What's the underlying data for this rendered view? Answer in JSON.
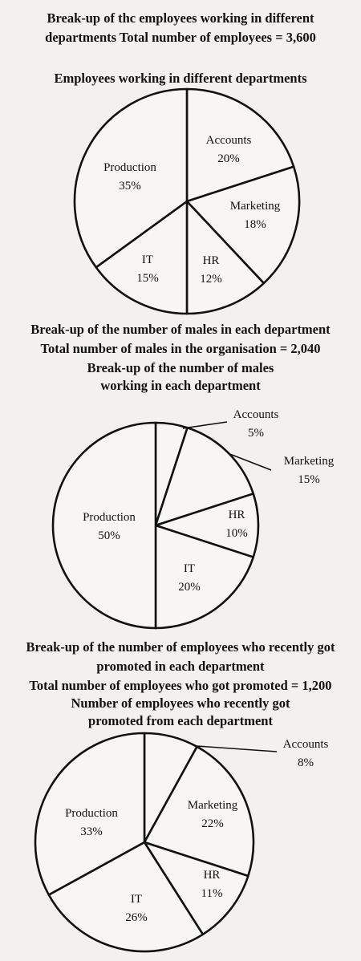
{
  "header": {
    "line1": "Break-up of thc employees working in different",
    "line2": "departments Total number of employees = 3,600"
  },
  "charts": [
    {
      "titles": [
        "Employees working in different departments"
      ]
    },
    {
      "titles": [
        "Break-up of the number of males in each department",
        "Total number of males in the organisation = 2,040",
        "Break-up of the number of males",
        "working in each department"
      ]
    },
    {
      "titles": [
        "Break-up of the number of employees who recently got",
        "promoted in each department",
        "Total number of employees who got promoted = 1,200",
        "Number of employees who recently got",
        "promoted from each department"
      ]
    }
  ],
  "chart_data": [
    {
      "type": "pie",
      "title": "Employees working in different departments",
      "categories": [
        "Accounts",
        "Marketing",
        "HR",
        "IT",
        "Production"
      ],
      "values": [
        20,
        18,
        12,
        15,
        35
      ],
      "labels": [
        "20%",
        "18%",
        "12%",
        "15%",
        "35%"
      ],
      "unit": "%"
    },
    {
      "type": "pie",
      "title": "Break-up of the number of males working in each department",
      "categories": [
        "Accounts",
        "Marketing",
        "HR",
        "IT",
        "Production"
      ],
      "values": [
        5,
        15,
        10,
        20,
        50
      ],
      "labels": [
        "5%",
        "15%",
        "10%",
        "20%",
        "50%"
      ],
      "unit": "%"
    },
    {
      "type": "pie",
      "title": "Number of employees who recently got promoted from each department",
      "categories": [
        "Accounts",
        "Marketing",
        "HR",
        "IT",
        "Production"
      ],
      "values": [
        8,
        22,
        11,
        26,
        33
      ],
      "labels": [
        "8%",
        "22%",
        "11%",
        "26%",
        "33%"
      ],
      "unit": "%"
    }
  ]
}
